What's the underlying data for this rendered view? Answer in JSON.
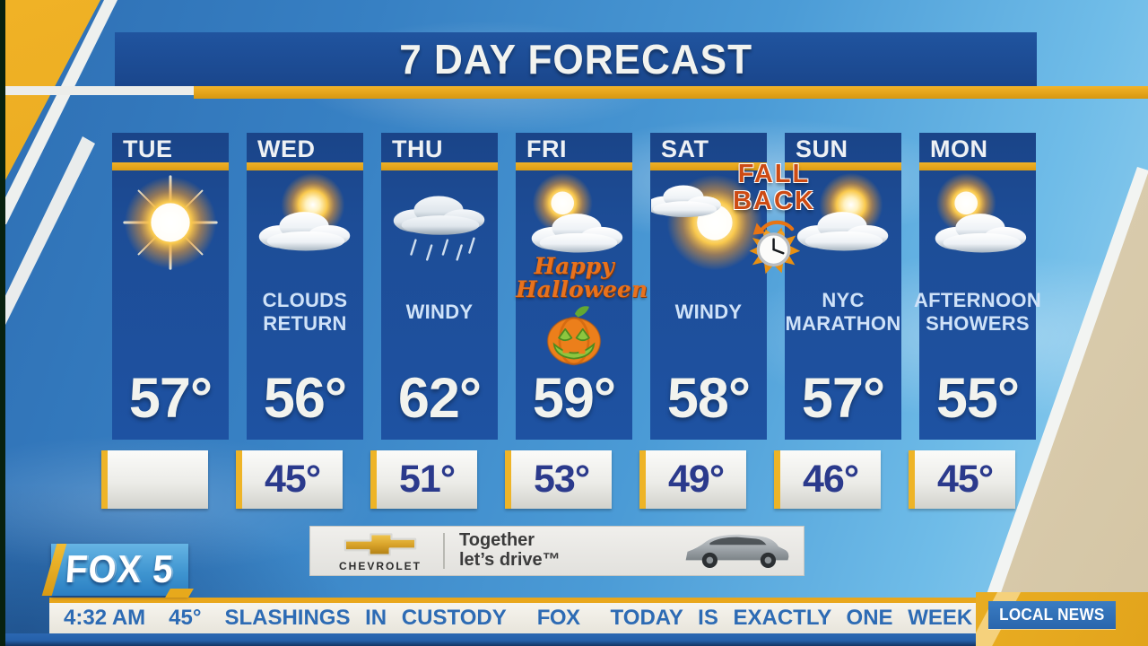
{
  "title": "7 DAY FORECAST",
  "station_logo": "FOX 5",
  "forecast": {
    "days": [
      {
        "day": "TUE",
        "icon": "sunny-icon",
        "condition": "",
        "high": "57°",
        "low": ""
      },
      {
        "day": "WED",
        "icon": "sun-behind-clouds-icon",
        "condition": "CLOUDS RETURN",
        "high": "56°",
        "low": "45°"
      },
      {
        "day": "THU",
        "icon": "rain-clouds-icon",
        "condition": "WINDY",
        "high": "62°",
        "low": "51°"
      },
      {
        "day": "FRI",
        "icon": "partly-cloudy-icon",
        "condition": "",
        "high": "59°",
        "low": "53°"
      },
      {
        "day": "SAT",
        "icon": "sun-with-cloud-icon",
        "condition": "WINDY",
        "high": "58°",
        "low": "49°"
      },
      {
        "day": "SUN",
        "icon": "sun-behind-clouds-icon",
        "condition": "NYC MARATHON",
        "high": "57°",
        "low": "46°"
      },
      {
        "day": "MON",
        "icon": "partly-cloudy-icon",
        "condition": "AFTERNOON SHOWERS",
        "high": "55°",
        "low": "45°"
      }
    ],
    "overlays": {
      "halloween": {
        "line1": "Happy",
        "line2": "Halloween",
        "icon": "jack-o-lantern-icon"
      },
      "fall_back": {
        "line1": "FALL",
        "line2": "BACK",
        "icon": "alarm-clock-autumn-leaf-icon"
      }
    }
  },
  "ad": {
    "brand": "CHEVROLET",
    "icon": "chevrolet-bowtie-icon",
    "tagline_line1": "Together",
    "tagline_line2": "let’s drive™",
    "vehicle_icon": "suv-image"
  },
  "ticker": {
    "time": "4:32 AM",
    "temperature": "45°",
    "headline": "SLASHINGS IN CUSTODY",
    "network": "FOX",
    "message": "TODAY IS EXACTLY ONE WEEK FROM ELECTION",
    "category_label": "LOCAL NEWS"
  },
  "colors": {
    "panel_blue": "#1d4d97",
    "accent_gold": "#eaa71f",
    "ticker_text_blue": "#2d6bb4",
    "low_temp_navy": "#2b3a8c",
    "sky_blue": "#4b9bd6"
  }
}
